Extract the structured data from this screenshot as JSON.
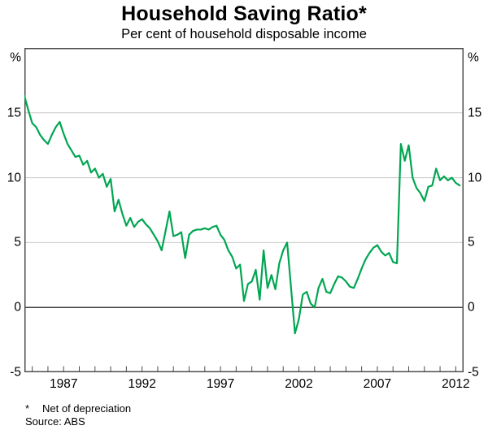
{
  "header": {
    "title": "Household Saving Ratio*",
    "subtitle": "Per cent of household disposable income"
  },
  "footnotes": {
    "asterisk": "*",
    "note": "Net of depreciation",
    "source": "Source: ABS"
  },
  "chart_data": {
    "type": "line",
    "title": "Household Saving Ratio*",
    "subtitle": "Per cent of household disposable income",
    "series_name": "Household saving ratio (net of depreciation)",
    "unit_label": "%",
    "xlim": [
      1984.5,
      2012.5
    ],
    "ylim": [
      -5,
      20
    ],
    "y_gridlines": [
      15,
      10,
      5
    ],
    "y_axis_labels": [
      15,
      10,
      5,
      0,
      -5
    ],
    "zero_line_at": 0,
    "x_tick_start_year": 1985,
    "x_tick_end_year": 2012,
    "x_tick_step": 1,
    "x_labels": [
      1987,
      1992,
      1997,
      2002,
      2007,
      2012
    ],
    "grid_on": true,
    "legend": "none",
    "line_color": "#00a651",
    "grid_color": "#c9c9c9",
    "frame_color": "#4d4d4d",
    "zero_line_color": "#000000",
    "x": [
      1984.5,
      1984.75,
      1985.0,
      1985.25,
      1985.5,
      1985.75,
      1986.0,
      1986.25,
      1986.5,
      1986.75,
      1987.0,
      1987.25,
      1987.5,
      1987.75,
      1988.0,
      1988.25,
      1988.5,
      1988.75,
      1989.0,
      1989.25,
      1989.5,
      1989.75,
      1990.0,
      1990.25,
      1990.5,
      1990.75,
      1991.0,
      1991.25,
      1991.5,
      1991.75,
      1992.0,
      1992.25,
      1992.5,
      1992.75,
      1993.0,
      1993.25,
      1993.5,
      1993.75,
      1994.0,
      1994.25,
      1994.5,
      1994.75,
      1995.0,
      1995.25,
      1995.5,
      1995.75,
      1996.0,
      1996.25,
      1996.5,
      1996.75,
      1997.0,
      1997.25,
      1997.5,
      1997.75,
      1998.0,
      1998.25,
      1998.5,
      1998.75,
      1999.0,
      1999.25,
      1999.5,
      1999.75,
      2000.0,
      2000.25,
      2000.5,
      2000.75,
      2001.0,
      2001.25,
      2001.5,
      2001.75,
      2002.0,
      2002.25,
      2002.5,
      2002.75,
      2003.0,
      2003.25,
      2003.5,
      2003.75,
      2004.0,
      2004.25,
      2004.5,
      2004.75,
      2005.0,
      2005.25,
      2005.5,
      2005.75,
      2006.0,
      2006.25,
      2006.5,
      2006.75,
      2007.0,
      2007.25,
      2007.5,
      2007.75,
      2008.0,
      2008.25,
      2008.5,
      2008.75,
      2009.0,
      2009.25,
      2009.5,
      2009.75,
      2010.0,
      2010.25,
      2010.5,
      2010.75,
      2011.0,
      2011.25,
      2011.5,
      2011.75,
      2012.0,
      2012.25
    ],
    "values": [
      16.3,
      15.2,
      14.2,
      13.9,
      13.3,
      12.9,
      12.6,
      13.3,
      13.9,
      14.3,
      13.4,
      12.6,
      12.1,
      11.6,
      11.7,
      11.0,
      11.3,
      10.4,
      10.7,
      10.0,
      10.3,
      9.3,
      9.9,
      7.4,
      8.3,
      7.2,
      6.3,
      6.9,
      6.2,
      6.6,
      6.8,
      6.4,
      6.1,
      5.6,
      5.1,
      4.4,
      5.9,
      7.4,
      5.5,
      5.6,
      5.8,
      3.8,
      5.6,
      5.9,
      6.0,
      6.0,
      6.1,
      6.0,
      6.2,
      6.3,
      5.6,
      5.2,
      4.4,
      3.9,
      3.0,
      3.3,
      0.5,
      1.8,
      2.0,
      2.9,
      0.6,
      4.4,
      1.5,
      2.5,
      1.4,
      3.4,
      4.4,
      5.0,
      1.5,
      -2.0,
      -0.9,
      1.0,
      1.2,
      0.3,
      0.0,
      1.5,
      2.2,
      1.2,
      1.1,
      1.8,
      2.4,
      2.3,
      2.0,
      1.6,
      1.5,
      2.2,
      3.0,
      3.7,
      4.2,
      4.6,
      4.8,
      4.3,
      4.0,
      4.2,
      3.5,
      3.4,
      12.6,
      11.3,
      12.5,
      10.0,
      9.2,
      8.8,
      8.2,
      9.3,
      9.4,
      10.7,
      9.8,
      10.1,
      9.8,
      10.0,
      9.6,
      9.4
    ]
  },
  "plot_geometry_note": "plot box 540x399 at (30,59)"
}
